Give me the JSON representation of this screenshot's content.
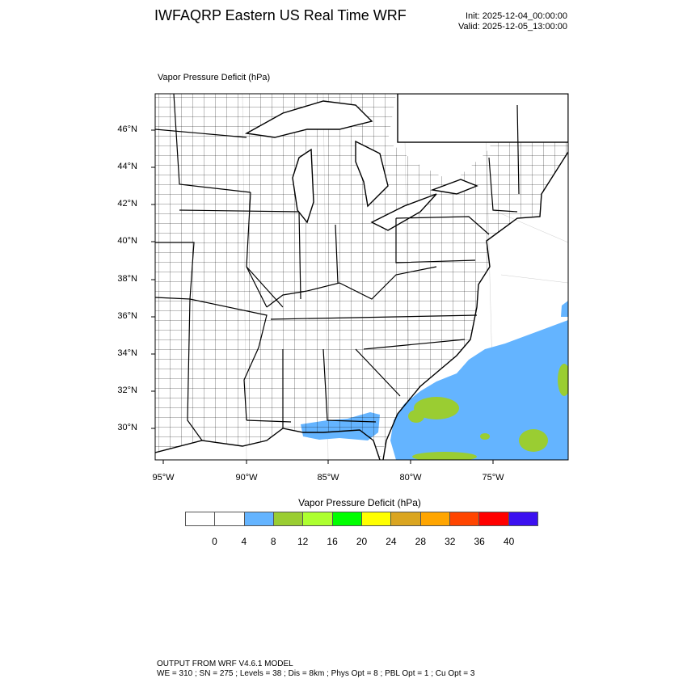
{
  "header": {
    "title": "IWFAQRP Eastern US Real Time WRF",
    "init": "Init: 2025-12-04_00:00:00",
    "valid": "Valid: 2025-12-05_13:00:00"
  },
  "map": {
    "field_label": "Vapor Pressure Deficit   (hPa)",
    "lat_labels": [
      "46°N",
      "44°N",
      "42°N",
      "40°N",
      "38°N",
      "36°N",
      "34°N",
      "32°N",
      "30°N"
    ],
    "lon_labels": [
      "95°W",
      "90°W",
      "85°W",
      "80°W",
      "75°W"
    ],
    "shaded_values": "4-8 hPa over Atlantic and Gulf coast; 8-12 hPa patches offshore",
    "colors": {
      "ocean_4_8": "#64b4ff",
      "patch_8_12": "#9acd32"
    }
  },
  "colorbar": {
    "title": "Vapor Pressure Deficit  (hPa)",
    "labels": [
      "0",
      "4",
      "8",
      "12",
      "16",
      "20",
      "24",
      "28",
      "32",
      "36",
      "40"
    ],
    "colors": [
      "#ffffff",
      "#ffffff",
      "#64b4ff",
      "#9acd32",
      "#adff2f",
      "#00ff00",
      "#ffff00",
      "#daa520",
      "#ffa500",
      "#ff4500",
      "#ff0000",
      "#3c10f0"
    ]
  },
  "footer": {
    "line1": "OUTPUT FROM WRF V4.6.1 MODEL",
    "line2": "WE = 310 ; SN = 275 ; Levels = 38 ; Dis = 8km ; Phys Opt = 8 ; PBL Opt = 1 ; Cu Opt = 3"
  }
}
